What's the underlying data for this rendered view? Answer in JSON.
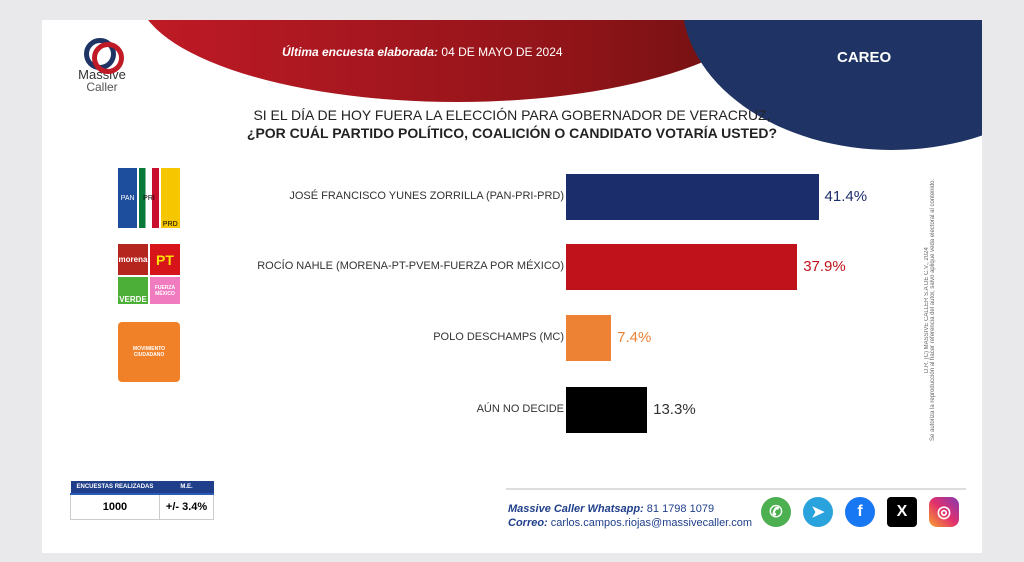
{
  "header": {
    "date_label": "Última encuesta elaborada:",
    "date_value": "04 DE MAYO DE 2024",
    "tag": "CAREO"
  },
  "logo": {
    "line1": "Massive",
    "line2": "Caller"
  },
  "question": {
    "line1": "SI EL DÍA DE HOY FUERA LA ELECCIÓN PARA GOBERNADOR DE VERACRUZ,",
    "line2": "¿POR CUÁL PARTIDO POLÍTICO, COALICIÓN O CANDIDATO VOTARÍA USTED?"
  },
  "chart_data": {
    "type": "bar",
    "orientation": "horizontal",
    "title": "SI EL DÍA DE HOY FUERA LA ELECCIÓN PARA GOBERNADOR DE VERACRUZ, ¿POR CUÁL PARTIDO POLÍTICO, COALICIÓN O CANDIDATO VOTARÍA USTED?",
    "categories": [
      "JOSÉ FRANCISCO YUNES ZORRILLA (PAN-PRI-PRD)",
      "ROCÍO NAHLE (MORENA-PT-PVEM-FUERZA POR MÉXICO)",
      "POLO DESCHAMPS (MC)",
      "AÚN NO DECIDE"
    ],
    "values": [
      41.4,
      37.9,
      7.4,
      13.3
    ],
    "value_labels": [
      "41.4%",
      "37.9%",
      "7.4%",
      "13.3%"
    ],
    "colors": [
      "#1b2d6b",
      "#c0121b",
      "#ee8234",
      "#000000"
    ],
    "label_colors": [
      "#1b2d6b",
      "#c0121b",
      "#ee8234",
      "#333333"
    ]
  },
  "parties": {
    "pan": "PAN",
    "pri": "PRI",
    "prd": "PRD",
    "morena": "morena",
    "pt": "PT",
    "verde": "VERDE",
    "fuerza": "FUERZA MÉXICO",
    "mc": "MOVIMIENTO CIUDADANO"
  },
  "legal": {
    "line1": "D.R. (C) MASSIVE CALLER S.A DE C.V., 2024",
    "line2": "Se autoriza la reproducción al hacer referencia del autor, salvo aplique veda electoral al contenido."
  },
  "stats": {
    "h1": "ENCUESTAS REALIZADAS",
    "h2": "M.E.",
    "v1": "1000",
    "v2": "+/- 3.4%"
  },
  "contact": {
    "wa_label": "Massive Caller Whatsapp:",
    "wa_value": "81 1798 1079",
    "mail_label": "Correo:",
    "mail_value": "carlos.campos.riojas@massivecaller.com"
  },
  "social": {
    "whatsapp": "✆",
    "telegram": "➤",
    "facebook": "f",
    "x": "X",
    "instagram": "◎"
  }
}
